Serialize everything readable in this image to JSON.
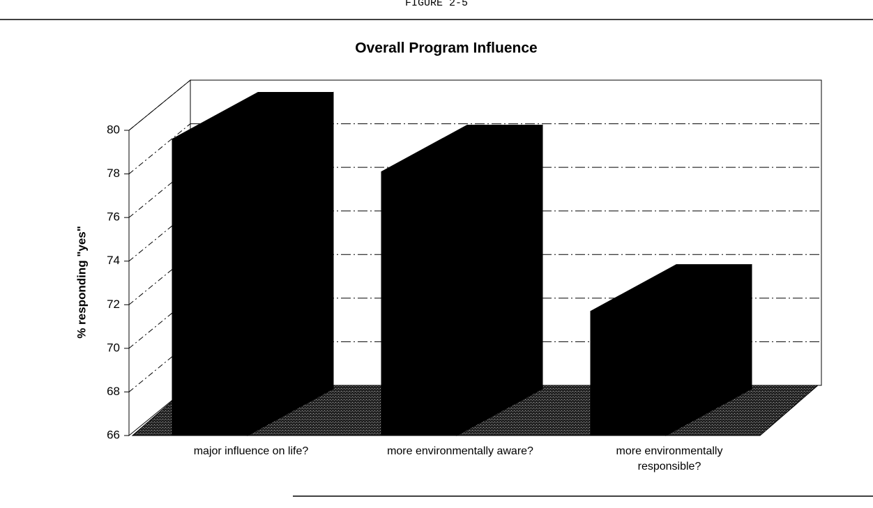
{
  "chart_data": {
    "type": "bar3d",
    "header": "FIGURE 2-5",
    "title": "Overall Program Influence",
    "y_label": "% responding \"yes\"",
    "categories": [
      "major influence on life?",
      "more environmentally aware?",
      "more environmentally responsible?"
    ],
    "values": [
      79.6,
      78.1,
      71.7
    ],
    "color": "#000000",
    "ylim": [
      66,
      80
    ],
    "yticks": [
      66,
      68,
      70,
      72,
      74,
      76,
      78,
      80
    ],
    "grid": true
  }
}
